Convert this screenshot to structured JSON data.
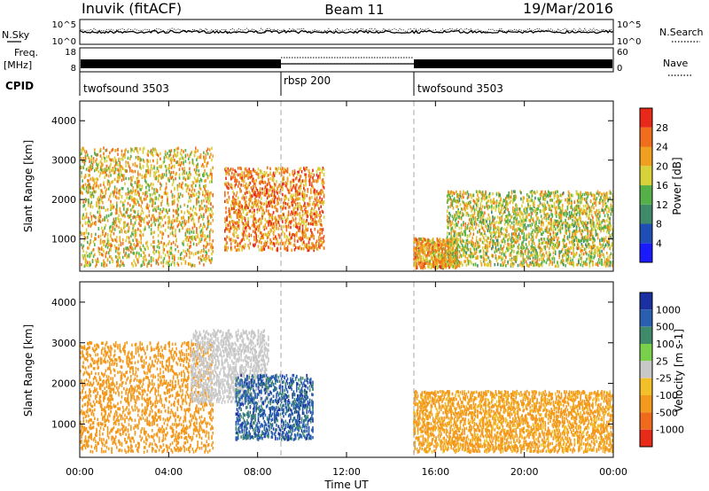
{
  "header": {
    "station": "Inuvik (fitACF)",
    "beam": "Beam 11",
    "date": "19/Mar/2016"
  },
  "noise_panel": {
    "left_label": "N.Sky",
    "right_label": "N.Search",
    "left_ticks": [
      "10^5",
      "10^0"
    ],
    "right_ticks": [
      "10^5",
      "10^0"
    ]
  },
  "freq_panel": {
    "left_label_1": "Freq.",
    "left_label_2": "[MHz]",
    "right_label": "Nave",
    "left_ticks": [
      "18",
      "8"
    ],
    "right_ticks": [
      "60",
      "0"
    ]
  },
  "cpid": {
    "label": "CPID",
    "segments": [
      {
        "name": "twofsound 3503",
        "start_h": 0,
        "end_h": 9
      },
      {
        "name": "rbsp 200",
        "start_h": 9,
        "end_h": 15
      },
      {
        "name": "twofsound 3503",
        "start_h": 15,
        "end_h": 24
      }
    ]
  },
  "x_axis": {
    "label": "Time UT",
    "ticks": [
      "00:00",
      "04:00",
      "08:00",
      "12:00",
      "16:00",
      "20:00",
      "00:00"
    ]
  },
  "colors": {
    "power": [
      "#1a1aff",
      "#1f4fb5",
      "#3f8a6a",
      "#55b04a",
      "#d7d23a",
      "#f0a020",
      "#f06d1c",
      "#e82818"
    ],
    "velocity": [
      "#e82a18",
      "#f06a1c",
      "#f39a1e",
      "#f3c02a",
      "#c8c8c8",
      "#7ad04a",
      "#3f8a6a",
      "#2a5fb0",
      "#1a2fa0"
    ]
  },
  "chart_data": [
    {
      "type": "heatmap",
      "name": "Power",
      "ylabel": "Slant Range [km]",
      "ylim": [
        180,
        4500
      ],
      "yticks": [
        "1000",
        "2000",
        "3000",
        "4000"
      ],
      "xlabel": "Time UT",
      "xlim_hours": [
        0,
        24
      ],
      "colorbar_label": "Power [dB]",
      "colorbar_ticks": [
        "4",
        "8",
        "12",
        "16",
        "20",
        "24",
        "28"
      ],
      "clim": [
        0,
        30
      ],
      "echo_regions": [
        {
          "t0": 0.0,
          "t1": 6.0,
          "r0": 300,
          "r1": 3300,
          "value": 20
        },
        {
          "t0": 6.5,
          "t1": 11.0,
          "r0": 700,
          "r1": 2800,
          "value": 24
        },
        {
          "t0": 15.0,
          "t1": 17.0,
          "r0": 250,
          "r1": 1000,
          "value": 22
        },
        {
          "t0": 16.5,
          "t1": 24.0,
          "r0": 300,
          "r1": 2200,
          "value": 18
        }
      ]
    },
    {
      "type": "heatmap",
      "name": "Velocity",
      "ylabel": "Slant Range [km]",
      "ylim": [
        180,
        4500
      ],
      "yticks": [
        "1000",
        "2000",
        "3000",
        "4000"
      ],
      "xlabel": "Time UT",
      "xlim_hours": [
        0,
        24
      ],
      "colorbar_label": "Velocity [m s-1]",
      "colorbar_ticks": [
        "1000",
        "500",
        "100",
        "25",
        "-25",
        "-100",
        "-500",
        "-1000"
      ],
      "echo_regions": [
        {
          "t0": 0.0,
          "t1": 6.0,
          "r0": 300,
          "r1": 3000,
          "value": -300
        },
        {
          "t0": 5.0,
          "t1": 8.5,
          "r0": 1500,
          "r1": 3300,
          "value": 0
        },
        {
          "t0": 7.0,
          "t1": 10.5,
          "r0": 600,
          "r1": 2200,
          "value": 700
        },
        {
          "t0": 15.0,
          "t1": 24.0,
          "r0": 300,
          "r1": 1800,
          "value": -150
        }
      ]
    }
  ]
}
